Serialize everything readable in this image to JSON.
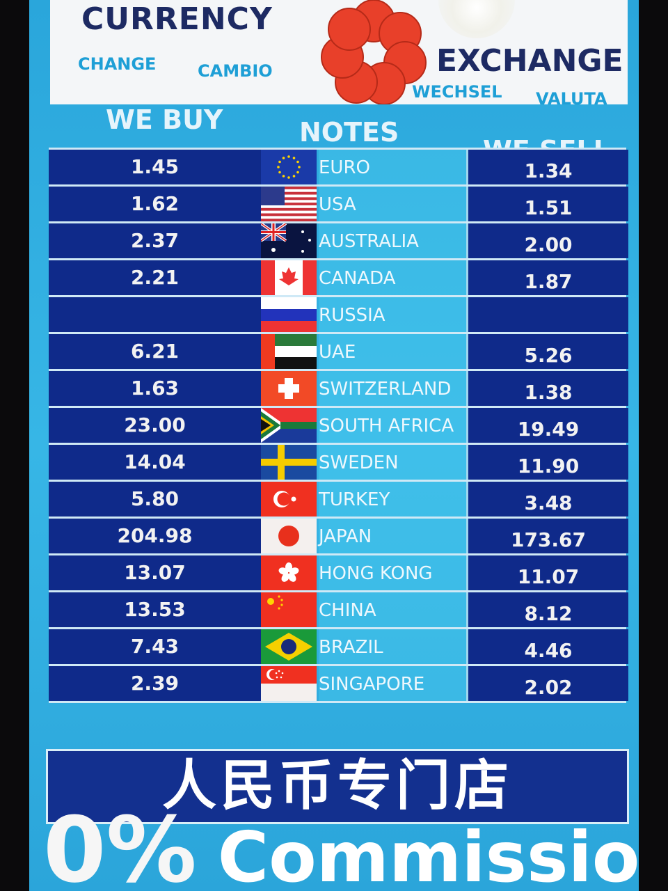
{
  "header": {
    "title_left": "CURRENCY",
    "title_right": "EXCHANGE",
    "subtitles": [
      "CHANGE",
      "CAMBIO",
      "WECHSEL",
      "VALUTA"
    ],
    "logo_icon": "red-flower-logo-icon",
    "logo_color": "#e8402a"
  },
  "columns": {
    "buy": "WE BUY",
    "notes": "NOTES",
    "sell": "WE SELL"
  },
  "rows": [
    {
      "name": "EURO",
      "buy": "1.45",
      "sell": "1.34",
      "flag": "eu"
    },
    {
      "name": "USA",
      "buy": "1.62",
      "sell": "1.51",
      "flag": "us"
    },
    {
      "name": "AUSTRALIA",
      "buy": "2.37",
      "sell": "2.00",
      "flag": "au"
    },
    {
      "name": "CANADA",
      "buy": "2.21",
      "sell": "1.87",
      "flag": "ca"
    },
    {
      "name": "RUSSIA",
      "buy": "",
      "sell": "",
      "flag": "ru"
    },
    {
      "name": "UAE",
      "buy": "6.21",
      "sell": "5.26",
      "flag": "ae"
    },
    {
      "name": "SWITZERLAND",
      "buy": "1.63",
      "sell": "1.38",
      "flag": "ch"
    },
    {
      "name": "SOUTH AFRICA",
      "buy": "23.00",
      "sell": "19.49",
      "flag": "za"
    },
    {
      "name": "SWEDEN",
      "buy": "14.04",
      "sell": "11.90",
      "flag": "se"
    },
    {
      "name": "TURKEY",
      "buy": "5.80",
      "sell": "3.48",
      "flag": "tr"
    },
    {
      "name": "JAPAN",
      "buy": "204.98",
      "sell": "173.67",
      "flag": "jp"
    },
    {
      "name": "HONG KONG",
      "buy": "13.07",
      "sell": "11.07",
      "flag": "hk"
    },
    {
      "name": "CHINA",
      "buy": "13.53",
      "sell": "8.12",
      "flag": "cn"
    },
    {
      "name": "BRAZIL",
      "buy": "7.43",
      "sell": "4.46",
      "flag": "br"
    },
    {
      "name": "SINGAPORE",
      "buy": "2.39",
      "sell": "2.02",
      "flag": "sg"
    }
  ],
  "banner": "人民币专门店",
  "commission": {
    "percent": "0%",
    "label": "Commission*"
  },
  "colors": {
    "navy": "#0f2a8a",
    "cyan": "#2aa6db",
    "title": "#1d2a63"
  }
}
